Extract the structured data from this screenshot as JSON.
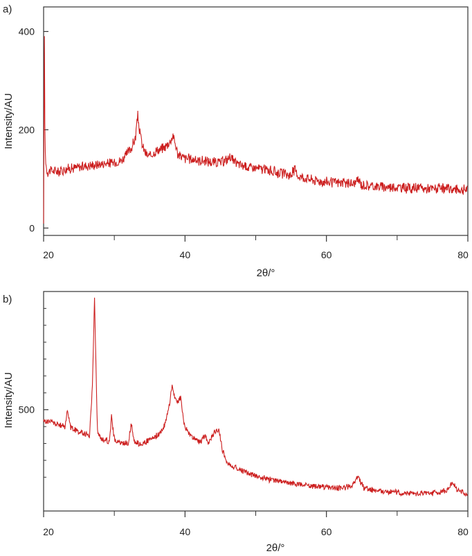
{
  "chart_data": [
    {
      "type": "line",
      "panel_label": "a)",
      "xlabel": "2θ/°",
      "ylabel": "Intensity/AU",
      "xlim": [
        20,
        80
      ],
      "ylim": [
        -15,
        450
      ],
      "x_ticks": [
        "20",
        "40",
        "60",
        "80"
      ],
      "y_ticks": [
        "0",
        "200",
        "400"
      ],
      "grid": false,
      "color": "#cc1f1f",
      "series": [
        {
          "x": [
            20.0,
            20.1,
            20.2,
            20.4,
            20.6,
            21,
            22,
            23,
            24,
            25,
            26,
            27,
            28,
            29,
            30,
            31,
            31.5,
            32,
            32.5,
            33,
            33.3,
            33.6,
            34,
            34.5,
            35,
            35.5,
            36,
            36.5,
            37,
            37.5,
            38,
            38.3,
            38.6,
            39,
            39.5,
            40,
            41,
            42,
            43,
            44,
            45,
            46,
            46.5,
            47,
            48,
            49,
            50,
            51,
            52,
            53,
            54,
            55,
            55.5,
            56,
            57,
            58,
            59,
            60,
            61,
            62,
            63,
            64,
            64.5,
            65,
            66,
            67,
            68,
            69,
            70,
            71,
            72,
            73,
            74,
            75,
            76,
            77,
            78,
            79,
            80
          ],
          "y": [
            0,
            440,
            160,
            120,
            115,
            117,
            115,
            120,
            122,
            124,
            127,
            128,
            130,
            132,
            133,
            138,
            145,
            155,
            165,
            185,
            230,
            195,
            165,
            150,
            145,
            152,
            158,
            160,
            163,
            170,
            178,
            190,
            172,
            150,
            145,
            142,
            140,
            138,
            136,
            134,
            133,
            140,
            146,
            132,
            128,
            124,
            122,
            120,
            117,
            113,
            110,
            108,
            120,
            106,
            102,
            98,
            96,
            94,
            93,
            92,
            91,
            90,
            98,
            88,
            86,
            85,
            84,
            84,
            83,
            82,
            82,
            81,
            80,
            80,
            80,
            79,
            79,
            78,
            78
          ],
          "noise": 12
        }
      ]
    },
    {
      "type": "line",
      "panel_label": "b)",
      "xlabel": "2θ/°",
      "ylabel": "Intensity/AU",
      "xlim": [
        20,
        80
      ],
      "ylim": [
        200,
        850
      ],
      "x_ticks": [
        "20",
        "40",
        "60",
        "80"
      ],
      "y_ticks": [
        "500"
      ],
      "grid": false,
      "color": "#cc1f1f",
      "series": [
        {
          "x": [
            20,
            21,
            22,
            23,
            23.4,
            23.8,
            24.5,
            25.5,
            26.5,
            26.9,
            27.2,
            27.6,
            28,
            28.8,
            29.3,
            29.6,
            30,
            31,
            32,
            32.4,
            32.8,
            33.5,
            34.5,
            35.5,
            36.5,
            37.2,
            37.8,
            38.2,
            38.6,
            39,
            39.4,
            39.8,
            40.5,
            41.5,
            42.3,
            42.8,
            43.3,
            43.8,
            44.3,
            44.8,
            45.3,
            46,
            48,
            50,
            52,
            54,
            56,
            58,
            60,
            62,
            63.5,
            64.5,
            65.3,
            66.5,
            68,
            70,
            72,
            74,
            76,
            77.2,
            77.8,
            78.5,
            79.3,
            80
          ],
          "y": [
            465,
            465,
            455,
            450,
            500,
            448,
            440,
            430,
            423,
            570,
            830,
            440,
            415,
            410,
            405,
            480,
            412,
            400,
            402,
            460,
            408,
            398,
            405,
            415,
            430,
            460,
            515,
            575,
            530,
            520,
            540,
            460,
            430,
            410,
            405,
            425,
            400,
            420,
            435,
            440,
            380,
            340,
            320,
            305,
            293,
            285,
            280,
            275,
            270,
            268,
            274,
            300,
            268,
            262,
            258,
            255,
            253,
            252,
            255,
            265,
            288,
            262,
            255,
            250
          ],
          "noise": 10
        }
      ]
    }
  ]
}
